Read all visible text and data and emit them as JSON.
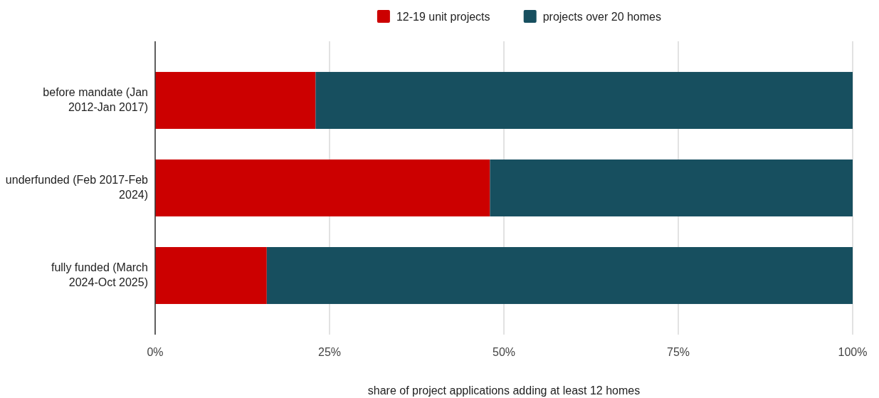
{
  "chart_data": {
    "type": "bar",
    "orientation": "horizontal",
    "stacked": true,
    "xlabel": "share of project applications adding at least 12 homes",
    "categories": [
      "before mandate (Jan 2012-Jan 2017)",
      "underfunded (Feb 2017-Feb 2024)",
      "fully funded (March 2024-Oct 2025)"
    ],
    "series": [
      {
        "name": "12-19 unit projects",
        "color": "#cc0000",
        "values": [
          23,
          48,
          16
        ]
      },
      {
        "name": "projects over 20 homes",
        "color": "#174f5f",
        "values": [
          77,
          52,
          84
        ]
      }
    ],
    "xlim": [
      0,
      100
    ],
    "xticks": [
      {
        "value": 0,
        "label": "0%"
      },
      {
        "value": 25,
        "label": "25%"
      },
      {
        "value": 50,
        "label": "50%"
      },
      {
        "value": 75,
        "label": "75%"
      },
      {
        "value": 100,
        "label": "100%"
      }
    ],
    "grid": "x",
    "legend": "top"
  }
}
